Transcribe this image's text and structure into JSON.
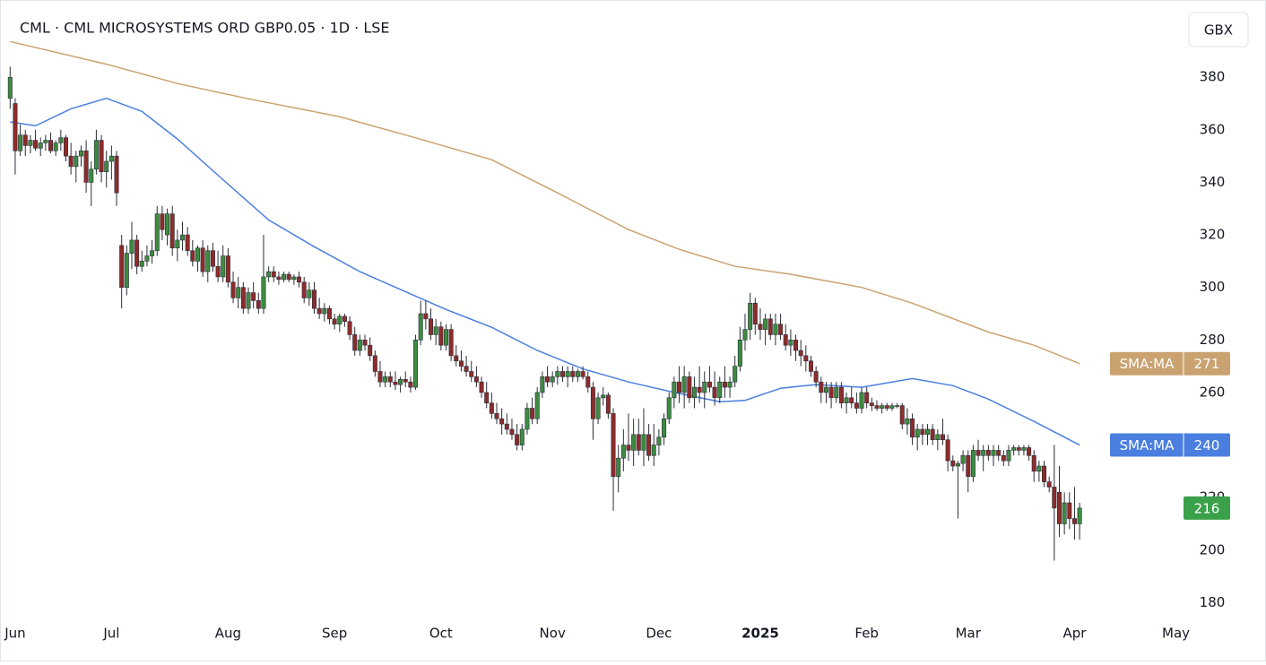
{
  "chart_data": {
    "type": "candlestick",
    "title": "CML · CML MICROSYSTEMS ORD GBP0.05 · 1D · LSE",
    "unit": "GBX",
    "up_color": "#3d8b40",
    "down_color": "#8e2b2b",
    "xlim": [
      -2,
      231.5
    ],
    "ylim": [
      174,
      406
    ],
    "yticks": [
      180,
      200,
      220,
      240,
      260,
      280,
      300,
      320,
      340,
      360,
      380
    ],
    "xticks": [
      {
        "value": 1,
        "label": "Jun"
      },
      {
        "value": 20,
        "label": "Jul"
      },
      {
        "value": 43,
        "label": "Aug"
      },
      {
        "value": 64,
        "label": "Sep"
      },
      {
        "value": 85,
        "label": "Oct"
      },
      {
        "value": 107,
        "label": "Nov"
      },
      {
        "value": 128,
        "label": "Dec"
      },
      {
        "value": 148,
        "label": "2025"
      },
      {
        "value": 169,
        "label": "Feb"
      },
      {
        "value": 189,
        "label": "Mar"
      },
      {
        "value": 210,
        "label": "Apr"
      },
      {
        "value": 230,
        "label": "May"
      }
    ],
    "candles": [
      [
        372,
        384,
        368,
        380
      ],
      [
        370,
        372,
        343,
        352
      ],
      [
        352,
        362,
        350,
        358
      ],
      [
        358,
        360,
        350,
        354
      ],
      [
        354,
        358,
        351,
        356
      ],
      [
        356,
        360,
        352,
        353
      ],
      [
        353,
        357,
        350,
        355
      ],
      [
        355,
        358,
        352,
        356
      ],
      [
        356,
        359,
        351,
        352
      ],
      [
        352,
        356,
        350,
        355
      ],
      [
        355,
        360,
        352,
        357
      ],
      [
        357,
        358,
        348,
        350
      ],
      [
        350,
        355,
        343,
        346
      ],
      [
        346,
        352,
        340,
        350
      ],
      [
        350,
        354,
        346,
        352
      ],
      [
        352,
        356,
        336,
        340
      ],
      [
        340,
        348,
        331,
        345
      ],
      [
        345,
        360,
        343,
        356
      ],
      [
        356,
        358,
        340,
        344
      ],
      [
        344,
        352,
        338,
        348
      ],
      [
        348,
        354,
        341,
        350
      ],
      [
        350,
        352,
        331,
        336
      ],
      [
        316,
        320,
        292,
        300
      ],
      [
        300,
        316,
        297,
        313
      ],
      [
        313,
        325,
        307,
        318
      ],
      [
        318,
        320,
        305,
        308
      ],
      [
        308,
        314,
        306,
        310
      ],
      [
        310,
        316,
        308,
        312
      ],
      [
        312,
        318,
        309,
        314
      ],
      [
        314,
        331,
        312,
        328
      ],
      [
        328,
        331,
        318,
        322
      ],
      [
        320,
        330,
        316,
        328
      ],
      [
        328,
        331,
        312,
        315
      ],
      [
        315,
        322,
        310,
        318
      ],
      [
        318,
        325,
        314,
        320
      ],
      [
        320,
        323,
        312,
        314
      ],
      [
        314,
        318,
        308,
        310
      ],
      [
        310,
        316,
        306,
        315
      ],
      [
        315,
        318,
        304,
        306
      ],
      [
        306,
        316,
        302,
        314
      ],
      [
        314,
        317,
        306,
        308
      ],
      [
        308,
        314,
        302,
        304
      ],
      [
        304,
        316,
        302,
        312
      ],
      [
        312,
        315,
        300,
        302
      ],
      [
        302,
        306,
        294,
        296
      ],
      [
        296,
        304,
        292,
        300
      ],
      [
        300,
        302,
        290,
        292
      ],
      [
        292,
        300,
        290,
        298
      ],
      [
        298,
        302,
        292,
        295
      ],
      [
        295,
        298,
        290,
        292
      ],
      [
        292,
        320,
        290,
        304
      ],
      [
        304,
        308,
        302,
        306
      ],
      [
        306,
        308,
        302,
        304
      ],
      [
        304,
        306,
        301,
        303
      ],
      [
        303,
        306,
        302,
        305
      ],
      [
        305,
        306,
        302,
        303
      ],
      [
        303,
        305,
        301,
        304
      ],
      [
        304,
        306,
        300,
        302
      ],
      [
        302,
        304,
        294,
        296
      ],
      [
        296,
        302,
        293,
        299
      ],
      [
        299,
        302,
        290,
        292
      ],
      [
        292,
        296,
        288,
        290
      ],
      [
        290,
        294,
        287,
        292
      ],
      [
        292,
        293,
        286,
        288
      ],
      [
        288,
        290,
        284,
        286
      ],
      [
        286,
        290,
        283,
        289
      ],
      [
        289,
        290,
        285,
        287
      ],
      [
        287,
        289,
        280,
        282
      ],
      [
        282,
        285,
        274,
        276
      ],
      [
        276,
        282,
        274,
        280
      ],
      [
        280,
        282,
        276,
        278
      ],
      [
        278,
        281,
        272,
        274
      ],
      [
        274,
        276,
        266,
        268
      ],
      [
        268,
        272,
        262,
        264
      ],
      [
        264,
        268,
        262,
        266
      ],
      [
        266,
        268,
        262,
        264
      ],
      [
        264,
        268,
        261,
        263
      ],
      [
        263,
        266,
        260,
        265
      ],
      [
        265,
        268,
        262,
        264
      ],
      [
        264,
        266,
        260,
        262
      ],
      [
        262,
        282,
        261,
        280
      ],
      [
        280,
        295,
        278,
        290
      ],
      [
        290,
        295,
        284,
        288
      ],
      [
        288,
        292,
        280,
        282
      ],
      [
        282,
        288,
        278,
        285
      ],
      [
        285,
        287,
        276,
        278
      ],
      [
        278,
        286,
        276,
        284
      ],
      [
        284,
        286,
        272,
        274
      ],
      [
        274,
        278,
        270,
        272
      ],
      [
        272,
        276,
        268,
        270
      ],
      [
        270,
        274,
        266,
        268
      ],
      [
        268,
        272,
        264,
        266
      ],
      [
        266,
        270,
        262,
        264
      ],
      [
        264,
        266,
        258,
        260
      ],
      [
        260,
        264,
        254,
        256
      ],
      [
        256,
        260,
        250,
        252
      ],
      [
        252,
        256,
        248,
        250
      ],
      [
        250,
        254,
        244,
        248
      ],
      [
        248,
        252,
        244,
        246
      ],
      [
        246,
        250,
        242,
        244
      ],
      [
        244,
        248,
        238,
        240
      ],
      [
        240,
        248,
        238,
        246
      ],
      [
        246,
        256,
        244,
        254
      ],
      [
        254,
        258,
        248,
        250
      ],
      [
        250,
        262,
        248,
        260
      ],
      [
        260,
        268,
        258,
        266
      ],
      [
        266,
        270,
        262,
        264
      ],
      [
        264,
        268,
        262,
        266
      ],
      [
        266,
        270,
        263,
        268
      ],
      [
        268,
        270,
        264,
        266
      ],
      [
        266,
        270,
        262,
        268
      ],
      [
        268,
        270,
        264,
        266
      ],
      [
        266,
        269,
        264,
        268
      ],
      [
        268,
        270,
        265,
        266
      ],
      [
        266,
        268,
        260,
        262
      ],
      [
        262,
        264,
        242,
        250
      ],
      [
        250,
        260,
        248,
        258
      ],
      [
        258,
        262,
        255,
        259
      ],
      [
        259,
        260,
        250,
        252
      ],
      [
        252,
        254,
        215,
        228
      ],
      [
        228,
        240,
        222,
        235
      ],
      [
        235,
        246,
        230,
        240
      ],
      [
        240,
        252,
        234,
        238
      ],
      [
        238,
        250,
        232,
        244
      ],
      [
        244,
        250,
        236,
        238
      ],
      [
        238,
        254,
        232,
        244
      ],
      [
        244,
        248,
        234,
        236
      ],
      [
        236,
        248,
        232,
        240
      ],
      [
        240,
        246,
        236,
        243
      ],
      [
        243,
        252,
        240,
        250
      ],
      [
        250,
        260,
        248,
        258
      ],
      [
        258,
        266,
        254,
        264
      ],
      [
        264,
        270,
        256,
        260
      ],
      [
        260,
        270,
        254,
        266
      ],
      [
        266,
        268,
        256,
        258
      ],
      [
        258,
        266,
        254,
        262
      ],
      [
        262,
        270,
        256,
        260
      ],
      [
        260,
        268,
        254,
        264
      ],
      [
        264,
        270,
        260,
        262
      ],
      [
        262,
        268,
        255,
        258
      ],
      [
        258,
        266,
        256,
        264
      ],
      [
        264,
        270,
        258,
        262
      ],
      [
        262,
        266,
        258,
        264
      ],
      [
        264,
        274,
        262,
        270
      ],
      [
        270,
        285,
        268,
        280
      ],
      [
        280,
        290,
        276,
        284
      ],
      [
        284,
        298,
        280,
        294
      ],
      [
        294,
        296,
        282,
        286
      ],
      [
        286,
        292,
        280,
        284
      ],
      [
        284,
        290,
        278,
        288
      ],
      [
        288,
        290,
        280,
        282
      ],
      [
        282,
        290,
        278,
        286
      ],
      [
        286,
        290,
        280,
        282
      ],
      [
        282,
        286,
        276,
        278
      ],
      [
        278,
        284,
        274,
        280
      ],
      [
        280,
        282,
        272,
        276
      ],
      [
        276,
        280,
        270,
        274
      ],
      [
        274,
        278,
        268,
        272
      ],
      [
        272,
        274,
        266,
        268
      ],
      [
        268,
        270,
        262,
        264
      ],
      [
        264,
        266,
        256,
        260
      ],
      [
        260,
        264,
        256,
        262
      ],
      [
        262,
        264,
        254,
        258
      ],
      [
        258,
        264,
        256,
        262
      ],
      [
        262,
        264,
        254,
        256
      ],
      [
        256,
        260,
        252,
        258
      ],
      [
        258,
        262,
        254,
        256
      ],
      [
        256,
        260,
        252,
        254
      ],
      [
        254,
        262,
        252,
        260
      ],
      [
        260,
        262,
        254,
        256
      ],
      [
        256,
        258,
        253,
        255
      ],
      [
        255,
        257,
        253,
        254
      ],
      [
        254,
        256,
        252,
        255
      ],
      [
        255,
        256,
        253,
        254
      ],
      [
        254,
        256,
        253,
        255
      ],
      [
        255,
        256,
        254,
        255
      ],
      [
        255,
        256,
        246,
        248
      ],
      [
        248,
        254,
        244,
        250
      ],
      [
        250,
        252,
        240,
        243
      ],
      [
        243,
        248,
        238,
        246
      ],
      [
        246,
        248,
        240,
        244
      ],
      [
        244,
        248,
        240,
        246
      ],
      [
        246,
        248,
        240,
        242
      ],
      [
        242,
        246,
        238,
        244
      ],
      [
        244,
        250,
        240,
        242
      ],
      [
        242,
        244,
        230,
        234
      ],
      [
        234,
        236,
        230,
        232
      ],
      [
        232,
        234,
        212,
        233
      ],
      [
        233,
        238,
        230,
        236
      ],
      [
        236,
        238,
        222,
        228
      ],
      [
        228,
        240,
        226,
        238
      ],
      [
        238,
        242,
        234,
        236
      ],
      [
        236,
        240,
        230,
        238
      ],
      [
        238,
        240,
        234,
        236
      ],
      [
        236,
        240,
        232,
        238
      ],
      [
        238,
        240,
        234,
        236
      ],
      [
        236,
        238,
        232,
        234
      ],
      [
        234,
        240,
        232,
        238
      ],
      [
        238,
        240,
        236,
        239
      ],
      [
        239,
        240,
        236,
        238
      ],
      [
        238,
        240,
        236,
        239
      ],
      [
        239,
        240,
        234,
        236
      ],
      [
        236,
        238,
        226,
        230
      ],
      [
        230,
        234,
        226,
        232
      ],
      [
        232,
        234,
        224,
        226
      ],
      [
        226,
        228,
        222,
        224
      ],
      [
        224,
        240,
        196,
        216
      ],
      [
        222,
        232,
        205,
        210
      ],
      [
        210,
        222,
        206,
        218
      ],
      [
        218,
        222,
        208,
        212
      ],
      [
        212,
        224,
        204,
        210
      ],
      [
        210,
        218,
        204,
        216
      ]
    ],
    "series": [
      {
        "name": "SMA:MA",
        "color": "#c9a270",
        "x": [
          0,
          19,
          33,
          47,
          65,
          79,
          95,
          108,
          122,
          132,
          143,
          154,
          168,
          178,
          193,
          202,
          211
        ],
        "values": [
          393.6,
          385,
          377.6,
          371.8,
          365,
          357.5,
          348.6,
          336,
          322,
          314.5,
          308,
          305,
          300,
          294,
          283,
          278,
          271
        ]
      },
      {
        "name": "SMA:MA",
        "color": "#4a7fe0",
        "x": [
          0,
          5,
          12,
          19,
          26,
          33,
          42,
          51,
          60,
          69,
          78,
          86,
          95,
          104,
          113,
          122,
          131,
          140,
          145,
          152,
          159,
          168,
          178,
          186,
          193,
          202,
          211
        ],
        "values": [
          363,
          361.5,
          368,
          372,
          367,
          356.5,
          341,
          325.7,
          315.5,
          306,
          298.4,
          291.6,
          284.8,
          276,
          269,
          264,
          260,
          256.5,
          257,
          261.6,
          263,
          262,
          265.3,
          262.6,
          257.5,
          249,
          240
        ]
      }
    ]
  }
}
